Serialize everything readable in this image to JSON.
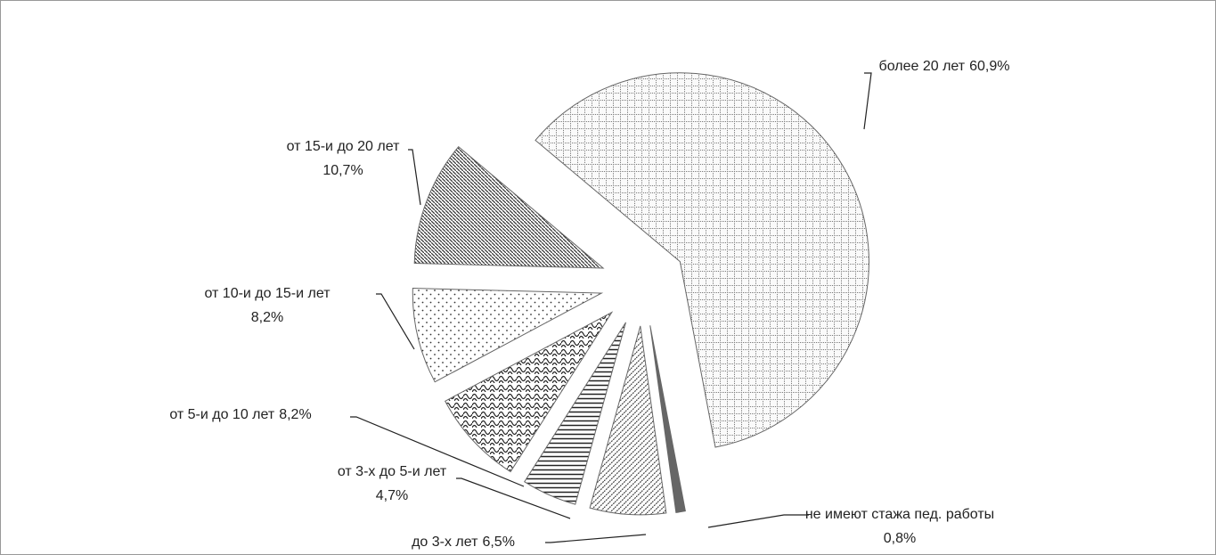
{
  "chart_data": {
    "type": "pie",
    "categories": [
      "более 20 лет",
      "не имеют стажа пед. работы",
      "до 3-х лет",
      "от 3-х до 5-и лет",
      "от 5-и до 10 лет",
      "от 10-и до 15-и лет",
      "от 15-и до 20 лет"
    ],
    "values": [
      60.9,
      0.8,
      6.5,
      4.7,
      8.2,
      8.2,
      10.7
    ],
    "value_labels": [
      "60,9%",
      "0,8%",
      "6,5%",
      "4,7%",
      "8,2%",
      "8,2%",
      "10,7%"
    ]
  }
}
